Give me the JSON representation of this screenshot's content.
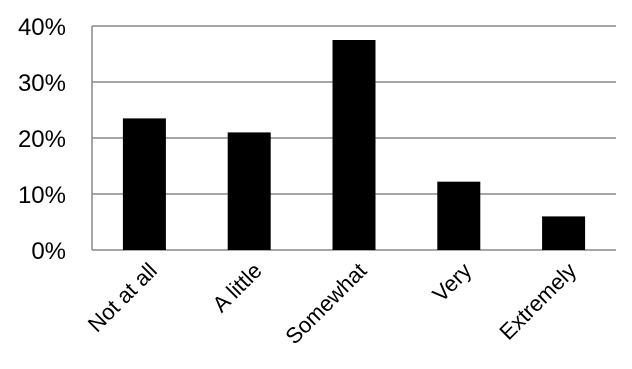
{
  "chart_data": {
    "type": "bar",
    "categories": [
      "Not at all",
      "A little",
      "Somewhat",
      "Very",
      "Extremely"
    ],
    "values": [
      23.5,
      21.0,
      37.5,
      12.2,
      6.0
    ],
    "yticks": [
      "0%",
      "10%",
      "20%",
      "30%",
      "40%"
    ],
    "ylim": [
      0,
      40
    ],
    "grid": true,
    "title": "",
    "xlabel": "",
    "ylabel": "",
    "colors": {
      "bar": "#000000",
      "grid": "#888888",
      "axis": "#888888"
    }
  }
}
